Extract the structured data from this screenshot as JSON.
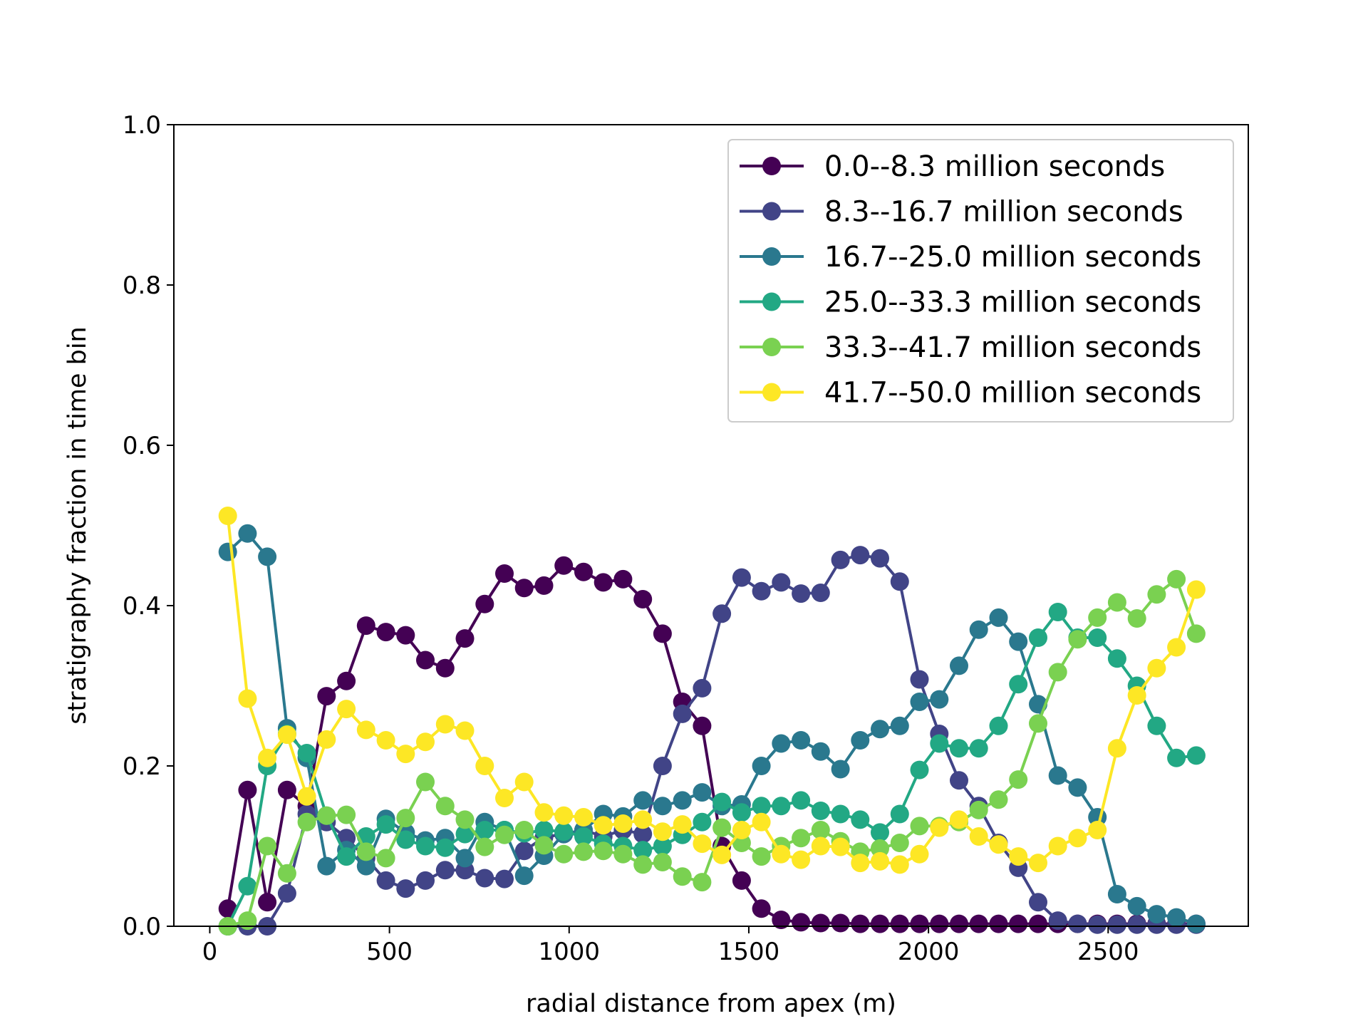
{
  "chart_data": {
    "type": "line",
    "title": "",
    "xlabel": "radial distance from apex (m)",
    "ylabel": "stratigraphy fraction in time bin",
    "xlim": [
      -100,
      2890
    ],
    "ylim": [
      0,
      1.0
    ],
    "xticks": [
      0,
      500,
      1000,
      1500,
      2000,
      2500
    ],
    "yticks": [
      0.0,
      0.2,
      0.4,
      0.6,
      0.8,
      1.0
    ],
    "xtick_labels": [
      "0",
      "500",
      "1000",
      "1500",
      "2000",
      "2500"
    ],
    "ytick_labels": [
      "0.0",
      "0.2",
      "0.4",
      "0.6",
      "0.8",
      "1.0"
    ],
    "grid": false,
    "legend_position": "upper right",
    "x": [
      50,
      105,
      160,
      215,
      270,
      325,
      380,
      435,
      490,
      545,
      600,
      655,
      710,
      765,
      820,
      875,
      930,
      985,
      1040,
      1095,
      1150,
      1205,
      1260,
      1315,
      1370,
      1425,
      1480,
      1535,
      1590,
      1645,
      1700,
      1755,
      1810,
      1865,
      1920,
      1975,
      2030,
      2085,
      2140,
      2195,
      2250,
      2305,
      2360,
      2415,
      2470,
      2525,
      2580,
      2635,
      2690,
      2745
    ],
    "series": [
      {
        "name": "0.0--8.3 million seconds",
        "color": "#440154",
        "values": [
          0.022,
          0.17,
          0.03,
          0.17,
          0.15,
          0.287,
          0.306,
          0.375,
          0.367,
          0.363,
          0.332,
          0.322,
          0.359,
          0.402,
          0.44,
          0.422,
          0.425,
          0.45,
          0.442,
          0.429,
          0.433,
          0.408,
          0.365,
          0.28,
          0.25,
          0.1,
          0.057,
          0.022,
          0.008,
          0.005,
          0.004,
          0.004,
          0.003,
          0.003,
          0.003,
          0.003,
          0.003,
          0.003,
          0.003,
          0.003,
          0.003,
          0.003,
          0.003,
          0.003,
          0.003,
          0.003,
          0.003,
          0.003,
          0.003,
          0.003
        ]
      },
      {
        "name": "8.3--16.7 million seconds",
        "color": "#414487",
        "values": [
          0.0,
          0.0,
          0.0,
          0.041,
          0.14,
          0.13,
          0.11,
          0.085,
          0.057,
          0.047,
          0.057,
          0.07,
          0.07,
          0.06,
          0.059,
          0.094,
          0.111,
          0.115,
          0.12,
          0.112,
          0.12,
          0.115,
          0.2,
          0.265,
          0.297,
          0.39,
          0.435,
          0.418,
          0.429,
          0.415,
          0.416,
          0.457,
          0.463,
          0.459,
          0.43,
          0.308,
          0.24,
          0.182,
          0.15,
          0.104,
          0.073,
          0.03,
          0.007,
          0.003,
          0.002,
          0.002,
          0.002,
          0.002,
          0.002,
          0.002
        ]
      },
      {
        "name": "16.7--25.0 million seconds",
        "color": "#2a788e",
        "values": [
          0.467,
          0.49,
          0.461,
          0.247,
          0.21,
          0.075,
          0.095,
          0.075,
          0.134,
          0.117,
          0.107,
          0.11,
          0.085,
          0.13,
          0.12,
          0.063,
          0.088,
          0.115,
          0.12,
          0.14,
          0.137,
          0.157,
          0.15,
          0.157,
          0.167,
          0.15,
          0.152,
          0.2,
          0.228,
          0.232,
          0.218,
          0.196,
          0.232,
          0.246,
          0.25,
          0.28,
          0.283,
          0.325,
          0.37,
          0.385,
          0.355,
          0.277,
          0.188,
          0.173,
          0.136,
          0.04,
          0.025,
          0.015,
          0.011,
          0.003
        ]
      },
      {
        "name": "25.0--33.3 million seconds",
        "color": "#22a884",
        "values": [
          0.0,
          0.05,
          0.2,
          0.24,
          0.216,
          0.138,
          0.087,
          0.112,
          0.127,
          0.108,
          0.1,
          0.098,
          0.115,
          0.12,
          0.12,
          0.116,
          0.12,
          0.118,
          0.112,
          0.103,
          0.1,
          0.095,
          0.1,
          0.114,
          0.13,
          0.155,
          0.142,
          0.15,
          0.15,
          0.157,
          0.144,
          0.14,
          0.133,
          0.117,
          0.14,
          0.195,
          0.228,
          0.222,
          0.222,
          0.25,
          0.302,
          0.36,
          0.392,
          0.36,
          0.36,
          0.334,
          0.3,
          0.25,
          0.21,
          0.213
        ]
      },
      {
        "name": "33.3--41.7 million seconds",
        "color": "#7ad151",
        "values": [
          0.0,
          0.007,
          0.1,
          0.066,
          0.13,
          0.138,
          0.139,
          0.093,
          0.085,
          0.135,
          0.18,
          0.15,
          0.133,
          0.099,
          0.114,
          0.12,
          0.101,
          0.09,
          0.093,
          0.094,
          0.09,
          0.077,
          0.08,
          0.062,
          0.055,
          0.123,
          0.104,
          0.087,
          0.1,
          0.11,
          0.12,
          0.106,
          0.093,
          0.097,
          0.104,
          0.125,
          0.125,
          0.13,
          0.145,
          0.158,
          0.183,
          0.253,
          0.317,
          0.358,
          0.385,
          0.404,
          0.384,
          0.414,
          0.433,
          0.365
        ]
      },
      {
        "name": "41.7--50.0 million seconds",
        "color": "#fde725",
        "values": [
          0.512,
          0.284,
          0.21,
          0.239,
          0.162,
          0.233,
          0.271,
          0.245,
          0.232,
          0.215,
          0.23,
          0.252,
          0.244,
          0.2,
          0.16,
          0.18,
          0.142,
          0.138,
          0.136,
          0.126,
          0.128,
          0.133,
          0.118,
          0.127,
          0.103,
          0.089,
          0.12,
          0.13,
          0.09,
          0.083,
          0.1,
          0.099,
          0.079,
          0.081,
          0.077,
          0.09,
          0.123,
          0.133,
          0.112,
          0.102,
          0.087,
          0.079,
          0.1,
          0.11,
          0.12,
          0.222,
          0.288,
          0.322,
          0.348,
          0.42
        ]
      }
    ]
  }
}
